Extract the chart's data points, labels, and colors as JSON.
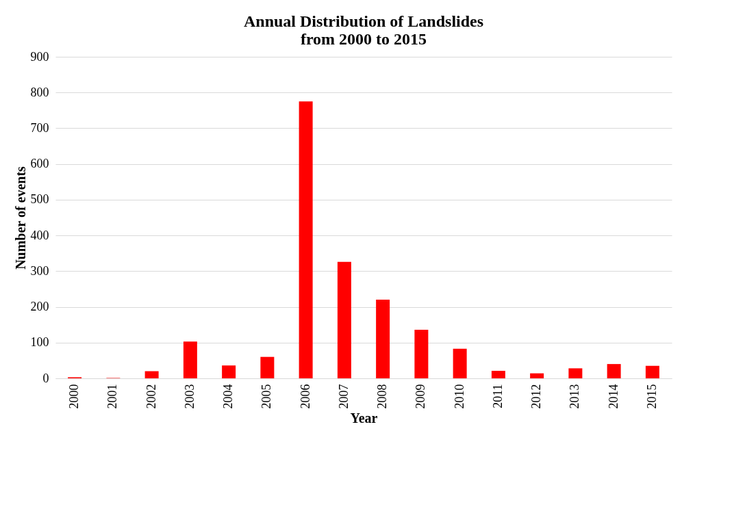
{
  "chart_data": {
    "type": "bar",
    "title": [
      "Annual Distribution of Landslides",
      "from 2000 to 2015"
    ],
    "xlabel": "Year",
    "ylabel": "Number of events",
    "categories": [
      "2000",
      "2001",
      "2002",
      "2003",
      "2004",
      "2005",
      "2006",
      "2007",
      "2008",
      "2009",
      "2010",
      "2011",
      "2012",
      "2013",
      "2014",
      "2015"
    ],
    "values": [
      3,
      1,
      20,
      103,
      36,
      60,
      775,
      326,
      220,
      136,
      83,
      21,
      14,
      28,
      40,
      35
    ],
    "color": "#ff0000",
    "ylim": [
      0,
      900
    ],
    "yticks": [
      0,
      100,
      200,
      300,
      400,
      500,
      600,
      700,
      800,
      900
    ],
    "grid": "y"
  }
}
